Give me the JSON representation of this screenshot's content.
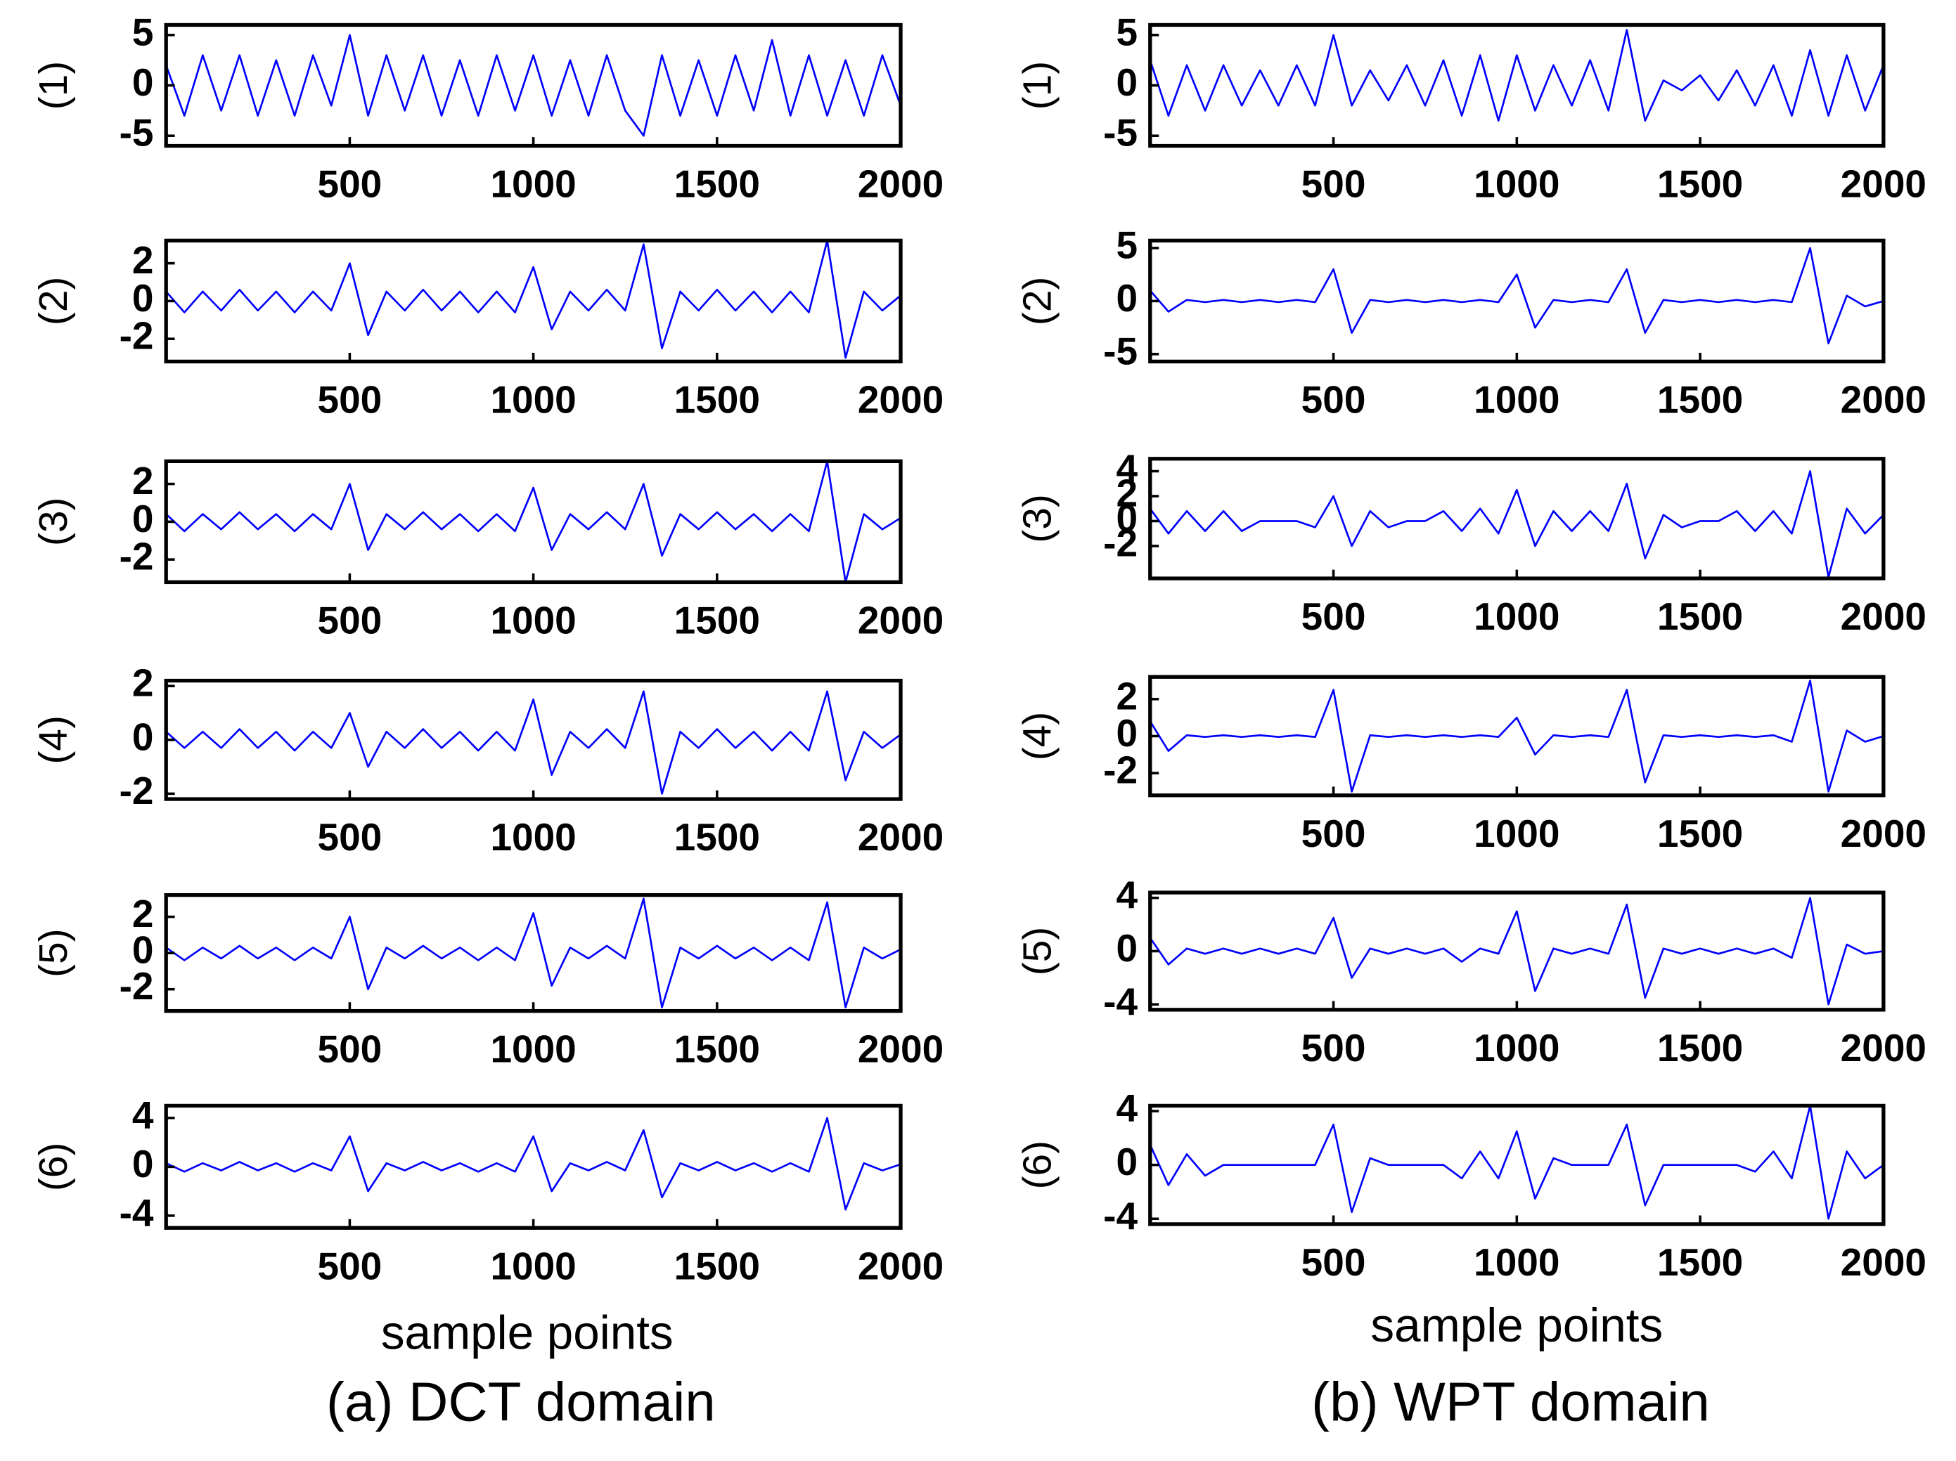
{
  "chart_data": [
    {
      "type": "line",
      "ylabel": "(1)",
      "color": "#0000ff",
      "xlim": [
        0,
        2000
      ],
      "xticks": [
        500,
        1000,
        1500,
        2000
      ],
      "ylim": [
        -6,
        6
      ],
      "yticks": [
        -5,
        0,
        5
      ],
      "x": [
        0,
        50,
        100,
        150,
        200,
        250,
        300,
        350,
        400,
        450,
        500,
        550,
        600,
        650,
        700,
        750,
        800,
        850,
        900,
        950,
        1000,
        1050,
        1100,
        1150,
        1200,
        1250,
        1300,
        1350,
        1400,
        1450,
        1500,
        1550,
        1600,
        1650,
        1700,
        1750,
        1800,
        1850,
        1900,
        1950,
        2000
      ],
      "values": [
        2,
        -3,
        3,
        -2.5,
        3,
        -3,
        2.5,
        -3,
        3,
        -2,
        5,
        -3,
        3,
        -2.5,
        3,
        -3,
        2.5,
        -3,
        3,
        -2.5,
        3,
        -3,
        2.5,
        -3,
        3,
        -2.5,
        -5,
        3,
        -3,
        2.5,
        -3,
        3,
        -2.5,
        4.5,
        -3,
        3,
        -3,
        2.5,
        -3,
        3,
        -2
      ]
    },
    {
      "type": "line",
      "ylabel": "(2)",
      "color": "#0000ff",
      "xlim": [
        0,
        2000
      ],
      "xticks": [
        500,
        1000,
        1500,
        2000
      ],
      "ylim": [
        -3.2,
        3.2
      ],
      "yticks": [
        -2,
        0,
        2
      ],
      "x": [
        0,
        50,
        100,
        150,
        200,
        250,
        300,
        350,
        400,
        450,
        500,
        550,
        600,
        650,
        700,
        750,
        800,
        850,
        900,
        950,
        1000,
        1050,
        1100,
        1150,
        1200,
        1250,
        1300,
        1350,
        1400,
        1450,
        1500,
        1550,
        1600,
        1650,
        1700,
        1750,
        1800,
        1850,
        1900,
        1950,
        2000
      ],
      "values": [
        0.5,
        -0.6,
        0.5,
        -0.5,
        0.6,
        -0.5,
        0.5,
        -0.6,
        0.5,
        -0.5,
        2,
        -1.8,
        0.5,
        -0.5,
        0.6,
        -0.5,
        0.5,
        -0.6,
        0.5,
        -0.6,
        1.8,
        -1.5,
        0.5,
        -0.5,
        0.6,
        -0.5,
        3,
        -2.5,
        0.5,
        -0.5,
        0.6,
        -0.5,
        0.5,
        -0.6,
        0.5,
        -0.6,
        3.2,
        -3,
        0.5,
        -0.5,
        0.3
      ]
    },
    {
      "type": "line",
      "ylabel": "(3)",
      "color": "#0000ff",
      "xlim": [
        0,
        2000
      ],
      "xticks": [
        500,
        1000,
        1500,
        2000
      ],
      "ylim": [
        -3.2,
        3.2
      ],
      "yticks": [
        -2,
        0,
        2
      ],
      "x": [
        0,
        50,
        100,
        150,
        200,
        250,
        300,
        350,
        400,
        450,
        500,
        550,
        600,
        650,
        700,
        750,
        800,
        850,
        900,
        950,
        1000,
        1050,
        1100,
        1150,
        1200,
        1250,
        1300,
        1350,
        1400,
        1450,
        1500,
        1550,
        1600,
        1650,
        1700,
        1750,
        1800,
        1850,
        1900,
        1950,
        2000
      ],
      "values": [
        0.4,
        -0.5,
        0.4,
        -0.4,
        0.5,
        -0.4,
        0.4,
        -0.5,
        0.4,
        -0.4,
        2,
        -1.5,
        0.4,
        -0.4,
        0.5,
        -0.4,
        0.4,
        -0.5,
        0.4,
        -0.5,
        1.8,
        -1.5,
        0.4,
        -0.4,
        0.5,
        -0.4,
        2,
        -1.8,
        0.4,
        -0.4,
        0.5,
        -0.4,
        0.4,
        -0.5,
        0.4,
        -0.5,
        3.2,
        -3.2,
        0.4,
        -0.4,
        0.2
      ]
    },
    {
      "type": "line",
      "ylabel": "(4)",
      "color": "#0000ff",
      "xlim": [
        0,
        2000
      ],
      "xticks": [
        500,
        1000,
        1500,
        2000
      ],
      "ylim": [
        -2.2,
        2.2
      ],
      "yticks": [
        -2,
        0,
        2
      ],
      "x": [
        0,
        50,
        100,
        150,
        200,
        250,
        300,
        350,
        400,
        450,
        500,
        550,
        600,
        650,
        700,
        750,
        800,
        850,
        900,
        950,
        1000,
        1050,
        1100,
        1150,
        1200,
        1250,
        1300,
        1350,
        1400,
        1450,
        1500,
        1550,
        1600,
        1650,
        1700,
        1750,
        1800,
        1850,
        1900,
        1950,
        2000
      ],
      "values": [
        0.3,
        -0.3,
        0.3,
        -0.3,
        0.4,
        -0.3,
        0.3,
        -0.4,
        0.3,
        -0.3,
        1,
        -1,
        0.3,
        -0.3,
        0.4,
        -0.3,
        0.3,
        -0.4,
        0.3,
        -0.4,
        1.5,
        -1.3,
        0.3,
        -0.3,
        0.4,
        -0.3,
        1.8,
        -2,
        0.3,
        -0.3,
        0.4,
        -0.3,
        0.3,
        -0.4,
        0.3,
        -0.4,
        1.8,
        -1.5,
        0.3,
        -0.3,
        0.2
      ]
    },
    {
      "type": "line",
      "ylabel": "(5)",
      "color": "#0000ff",
      "xlim": [
        0,
        2000
      ],
      "xticks": [
        500,
        1000,
        1500,
        2000
      ],
      "ylim": [
        -3.2,
        3.2
      ],
      "yticks": [
        -2,
        0,
        2
      ],
      "x": [
        0,
        50,
        100,
        150,
        200,
        250,
        300,
        350,
        400,
        450,
        500,
        550,
        600,
        650,
        700,
        750,
        800,
        850,
        900,
        950,
        1000,
        1050,
        1100,
        1150,
        1200,
        1250,
        1300,
        1350,
        1400,
        1450,
        1500,
        1550,
        1600,
        1650,
        1700,
        1750,
        1800,
        1850,
        1900,
        1950,
        2000
      ],
      "values": [
        0.3,
        -0.4,
        0.3,
        -0.3,
        0.4,
        -0.3,
        0.3,
        -0.4,
        0.3,
        -0.3,
        2,
        -2,
        0.3,
        -0.3,
        0.4,
        -0.3,
        0.3,
        -0.4,
        0.3,
        -0.4,
        2.2,
        -1.8,
        0.3,
        -0.3,
        0.4,
        -0.3,
        3,
        -3,
        0.3,
        -0.3,
        0.4,
        -0.3,
        0.3,
        -0.4,
        0.3,
        -0.4,
        2.8,
        -3,
        0.3,
        -0.3,
        0.2
      ]
    },
    {
      "type": "line",
      "ylabel": "(6)",
      "color": "#0000ff",
      "xlim": [
        0,
        2000
      ],
      "xticks": [
        500,
        1000,
        1500,
        2000
      ],
      "ylim": [
        -5,
        5
      ],
      "yticks": [
        -4,
        0,
        4
      ],
      "x": [
        0,
        50,
        100,
        150,
        200,
        250,
        300,
        350,
        400,
        450,
        500,
        550,
        600,
        650,
        700,
        750,
        800,
        850,
        900,
        950,
        1000,
        1050,
        1100,
        1150,
        1200,
        1250,
        1300,
        1350,
        1400,
        1450,
        1500,
        1550,
        1600,
        1650,
        1700,
        1750,
        1800,
        1850,
        1900,
        1950,
        2000
      ],
      "values": [
        0.3,
        -0.4,
        0.3,
        -0.3,
        0.4,
        -0.3,
        0.3,
        -0.4,
        0.3,
        -0.3,
        2.5,
        -2,
        0.3,
        -0.3,
        0.4,
        -0.3,
        0.3,
        -0.4,
        0.3,
        -0.4,
        2.5,
        -2,
        0.3,
        -0.3,
        0.4,
        -0.3,
        3,
        -2.5,
        0.3,
        -0.3,
        0.4,
        -0.3,
        0.3,
        -0.4,
        0.3,
        -0.4,
        4,
        -3.5,
        0.3,
        -0.3,
        0.2
      ]
    },
    {
      "type": "line",
      "ylabel": "(1)",
      "color": "#0000ff",
      "xlim": [
        0,
        2000
      ],
      "xticks": [
        500,
        1000,
        1500,
        2000
      ],
      "ylim": [
        -6,
        6
      ],
      "yticks": [
        -5,
        0,
        5
      ],
      "x": [
        0,
        50,
        100,
        150,
        200,
        250,
        300,
        350,
        400,
        450,
        500,
        550,
        600,
        650,
        700,
        750,
        800,
        850,
        900,
        950,
        1000,
        1050,
        1100,
        1150,
        1200,
        1250,
        1300,
        1350,
        1400,
        1450,
        1500,
        1550,
        1600,
        1650,
        1700,
        1750,
        1800,
        1850,
        1900,
        1950,
        2000
      ],
      "values": [
        2.5,
        -3,
        2,
        -2.5,
        2,
        -2,
        1.5,
        -2,
        2,
        -2,
        5,
        -2,
        1.5,
        -1.5,
        2,
        -2,
        2.5,
        -3,
        3,
        -3.5,
        3,
        -2.5,
        2,
        -2,
        2.5,
        -2.5,
        5.5,
        -3.5,
        0.5,
        -0.5,
        1,
        -1.5,
        1.5,
        -2,
        2,
        -3,
        3.5,
        -3,
        3,
        -2.5,
        2
      ]
    },
    {
      "type": "line",
      "ylabel": "(2)",
      "color": "#0000ff",
      "xlim": [
        0,
        2000
      ],
      "xticks": [
        500,
        1000,
        1500,
        2000
      ],
      "ylim": [
        -5.7,
        5.7
      ],
      "yticks": [
        -5,
        0,
        5
      ],
      "x": [
        0,
        50,
        100,
        150,
        200,
        250,
        300,
        350,
        400,
        450,
        500,
        550,
        600,
        650,
        700,
        750,
        800,
        850,
        900,
        950,
        1000,
        1050,
        1100,
        1150,
        1200,
        1250,
        1300,
        1350,
        1400,
        1450,
        1500,
        1550,
        1600,
        1650,
        1700,
        1750,
        1800,
        1850,
        1900,
        1950,
        2000
      ],
      "values": [
        1,
        -1,
        0.1,
        -0.1,
        0.1,
        -0.1,
        0.1,
        -0.1,
        0.1,
        -0.1,
        3,
        -3,
        0.1,
        -0.1,
        0.1,
        -0.1,
        0.1,
        -0.1,
        0.1,
        -0.1,
        2.5,
        -2.5,
        0.1,
        -0.1,
        0.1,
        -0.1,
        3,
        -3,
        0.1,
        -0.1,
        0.1,
        -0.1,
        0.1,
        -0.1,
        0.1,
        -0.1,
        5,
        -4,
        0.5,
        -0.5,
        0
      ]
    },
    {
      "type": "line",
      "ylabel": "(3)",
      "color": "#0000ff",
      "xlim": [
        0,
        2000
      ],
      "xticks": [
        500,
        1000,
        1500,
        2000
      ],
      "ylim": [
        -4.6,
        5
      ],
      "yticks": [
        -2,
        0,
        2,
        4
      ],
      "x": [
        0,
        50,
        100,
        150,
        200,
        250,
        300,
        350,
        400,
        450,
        500,
        550,
        600,
        650,
        700,
        750,
        800,
        850,
        900,
        950,
        1000,
        1050,
        1100,
        1150,
        1200,
        1250,
        1300,
        1350,
        1400,
        1450,
        1500,
        1550,
        1600,
        1650,
        1700,
        1750,
        1800,
        1850,
        1900,
        1950,
        2000
      ],
      "values": [
        1,
        -1,
        0.8,
        -0.8,
        0.8,
        -0.8,
        0,
        0,
        0,
        -0.5,
        2,
        -2,
        0.8,
        -0.5,
        0,
        0,
        0.8,
        -0.8,
        1,
        -1,
        2.5,
        -2,
        0.8,
        -0.8,
        0.8,
        -0.8,
        3,
        -3,
        0.5,
        -0.5,
        0,
        0,
        0.8,
        -0.8,
        0.8,
        -1,
        4,
        -4.5,
        1,
        -1,
        0.5
      ]
    },
    {
      "type": "line",
      "ylabel": "(4)",
      "color": "#0000ff",
      "xlim": [
        0,
        2000
      ],
      "xticks": [
        500,
        1000,
        1500,
        2000
      ],
      "ylim": [
        -3.2,
        3.2
      ],
      "yticks": [
        -2,
        0,
        2
      ],
      "x": [
        0,
        50,
        100,
        150,
        200,
        250,
        300,
        350,
        400,
        450,
        500,
        550,
        600,
        650,
        700,
        750,
        800,
        850,
        900,
        950,
        1000,
        1050,
        1100,
        1150,
        1200,
        1250,
        1300,
        1350,
        1400,
        1450,
        1500,
        1550,
        1600,
        1650,
        1700,
        1750,
        1800,
        1850,
        1900,
        1950,
        2000
      ],
      "values": [
        0.8,
        -0.8,
        0.05,
        -0.05,
        0.05,
        -0.05,
        0.05,
        -0.05,
        0.05,
        -0.05,
        2.5,
        -3,
        0.05,
        -0.05,
        0.05,
        -0.05,
        0.05,
        -0.05,
        0.05,
        -0.05,
        1,
        -1,
        0.05,
        -0.05,
        0.05,
        -0.05,
        2.5,
        -2.5,
        0.05,
        -0.05,
        0.05,
        -0.05,
        0.05,
        -0.05,
        0.05,
        -0.3,
        3,
        -3,
        0.3,
        -0.3,
        0
      ]
    },
    {
      "type": "line",
      "ylabel": "(5)",
      "color": "#0000ff",
      "xlim": [
        0,
        2000
      ],
      "xticks": [
        500,
        1000,
        1500,
        2000
      ],
      "ylim": [
        -4.4,
        4.4
      ],
      "yticks": [
        -4,
        0,
        4
      ],
      "x": [
        0,
        50,
        100,
        150,
        200,
        250,
        300,
        350,
        400,
        450,
        500,
        550,
        600,
        650,
        700,
        750,
        800,
        850,
        900,
        950,
        1000,
        1050,
        1100,
        1150,
        1200,
        1250,
        1300,
        1350,
        1400,
        1450,
        1500,
        1550,
        1600,
        1650,
        1700,
        1750,
        1800,
        1850,
        1900,
        1950,
        2000
      ],
      "values": [
        1,
        -1,
        0.2,
        -0.2,
        0.2,
        -0.2,
        0.2,
        -0.2,
        0.2,
        -0.2,
        2.5,
        -2,
        0.2,
        -0.2,
        0.2,
        -0.2,
        0.2,
        -0.8,
        0.2,
        -0.2,
        3,
        -3,
        0.2,
        -0.2,
        0.2,
        -0.2,
        3.5,
        -3.5,
        0.2,
        -0.2,
        0.2,
        -0.2,
        0.2,
        -0.2,
        0.2,
        -0.5,
        4,
        -4,
        0.5,
        -0.2,
        0
      ]
    },
    {
      "type": "line",
      "ylabel": "(6)",
      "color": "#0000ff",
      "xlim": [
        0,
        2000
      ],
      "xticks": [
        500,
        1000,
        1500,
        2000
      ],
      "ylim": [
        -4.4,
        4.4
      ],
      "yticks": [
        -4,
        0,
        4
      ],
      "x": [
        0,
        50,
        100,
        150,
        200,
        250,
        300,
        350,
        400,
        450,
        500,
        550,
        600,
        650,
        700,
        750,
        800,
        850,
        900,
        950,
        1000,
        1050,
        1100,
        1150,
        1200,
        1250,
        1300,
        1350,
        1400,
        1450,
        1500,
        1550,
        1600,
        1650,
        1700,
        1750,
        1800,
        1850,
        1900,
        1950,
        2000
      ],
      "values": [
        1.5,
        -1.5,
        0.8,
        -0.8,
        0,
        0,
        0,
        0,
        0,
        0,
        3,
        -3.5,
        0.5,
        0,
        0,
        0,
        0,
        -1,
        1,
        -1,
        2.5,
        -2.5,
        0.5,
        0,
        0,
        0,
        3,
        -3,
        0,
        0,
        0,
        0,
        0,
        -0.5,
        1,
        -1,
        4.4,
        -4,
        1,
        -1,
        0
      ]
    }
  ],
  "panels": [
    {
      "xlabel": "sample points",
      "caption": "(a) DCT domain"
    },
    {
      "xlabel": "sample points",
      "caption": "(b) WPT domain"
    }
  ]
}
